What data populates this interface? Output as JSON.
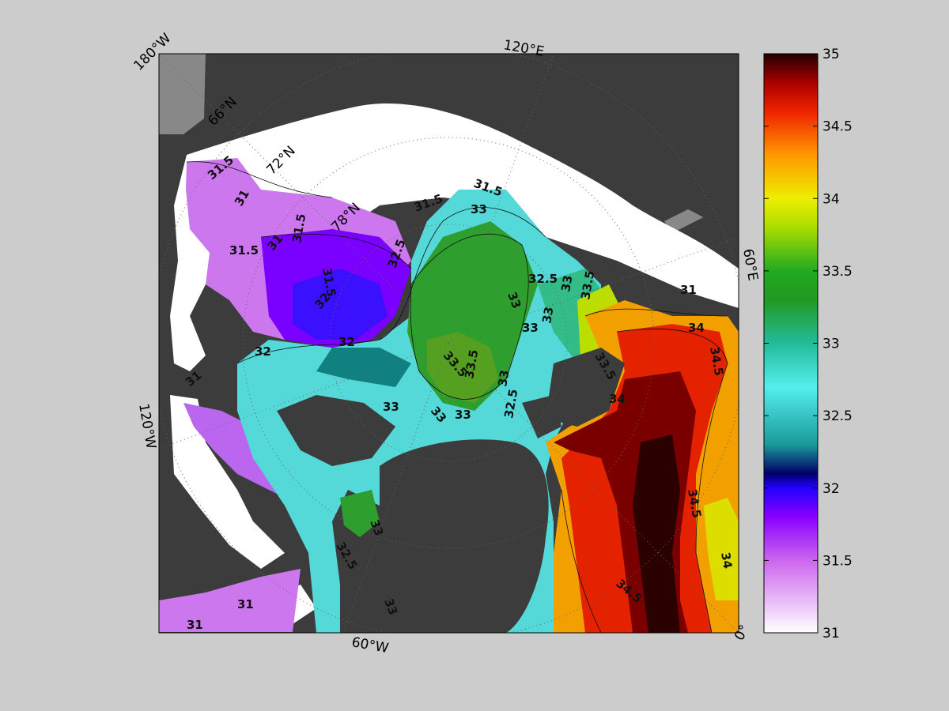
{
  "figure": {
    "projection": "north-polar-stereographic",
    "variable_shown": "surface salinity field with contours",
    "colors": {
      "land": "#3c3c3c",
      "ice_or_nodata": "#ffffff",
      "background": "#cccccc",
      "lake": "#888888"
    }
  },
  "map_labels": {
    "lon_180W": "180°W",
    "lon_120E": "120°E",
    "lon_60E": "60°E",
    "lon_120W": "120°W",
    "lon_60W": "60°W",
    "lon_0": "0°",
    "lat_66N": "66°N",
    "lat_72N": "72°N",
    "lat_78N": "78°N"
  },
  "contour_labels": [
    "31",
    "31.5",
    "32",
    "32.5",
    "33",
    "33.5",
    "34",
    "34.5"
  ],
  "colorbar": {
    "min": 31,
    "max": 35,
    "ticks": [
      "35",
      "34.5",
      "34",
      "33.5",
      "33",
      "32.5",
      "32",
      "31.5",
      "31"
    ],
    "stops": [
      {
        "v": 31.0,
        "c": "#ffffff"
      },
      {
        "v": 31.5,
        "c": "#cc66ee"
      },
      {
        "v": 31.8,
        "c": "#8800ff"
      },
      {
        "v": 32.0,
        "c": "#2200ff"
      },
      {
        "v": 32.1,
        "c": "#000066"
      },
      {
        "v": 32.3,
        "c": "#1a9a9a"
      },
      {
        "v": 32.7,
        "c": "#55eeee"
      },
      {
        "v": 33.0,
        "c": "#22bb99"
      },
      {
        "v": 33.3,
        "c": "#229922"
      },
      {
        "v": 33.5,
        "c": "#22aa22"
      },
      {
        "v": 33.8,
        "c": "#aadd00"
      },
      {
        "v": 34.0,
        "c": "#eeee00"
      },
      {
        "v": 34.3,
        "c": "#ff9900"
      },
      {
        "v": 34.6,
        "c": "#ee2200"
      },
      {
        "v": 34.8,
        "c": "#aa0000"
      },
      {
        "v": 35.0,
        "c": "#220000"
      }
    ]
  }
}
